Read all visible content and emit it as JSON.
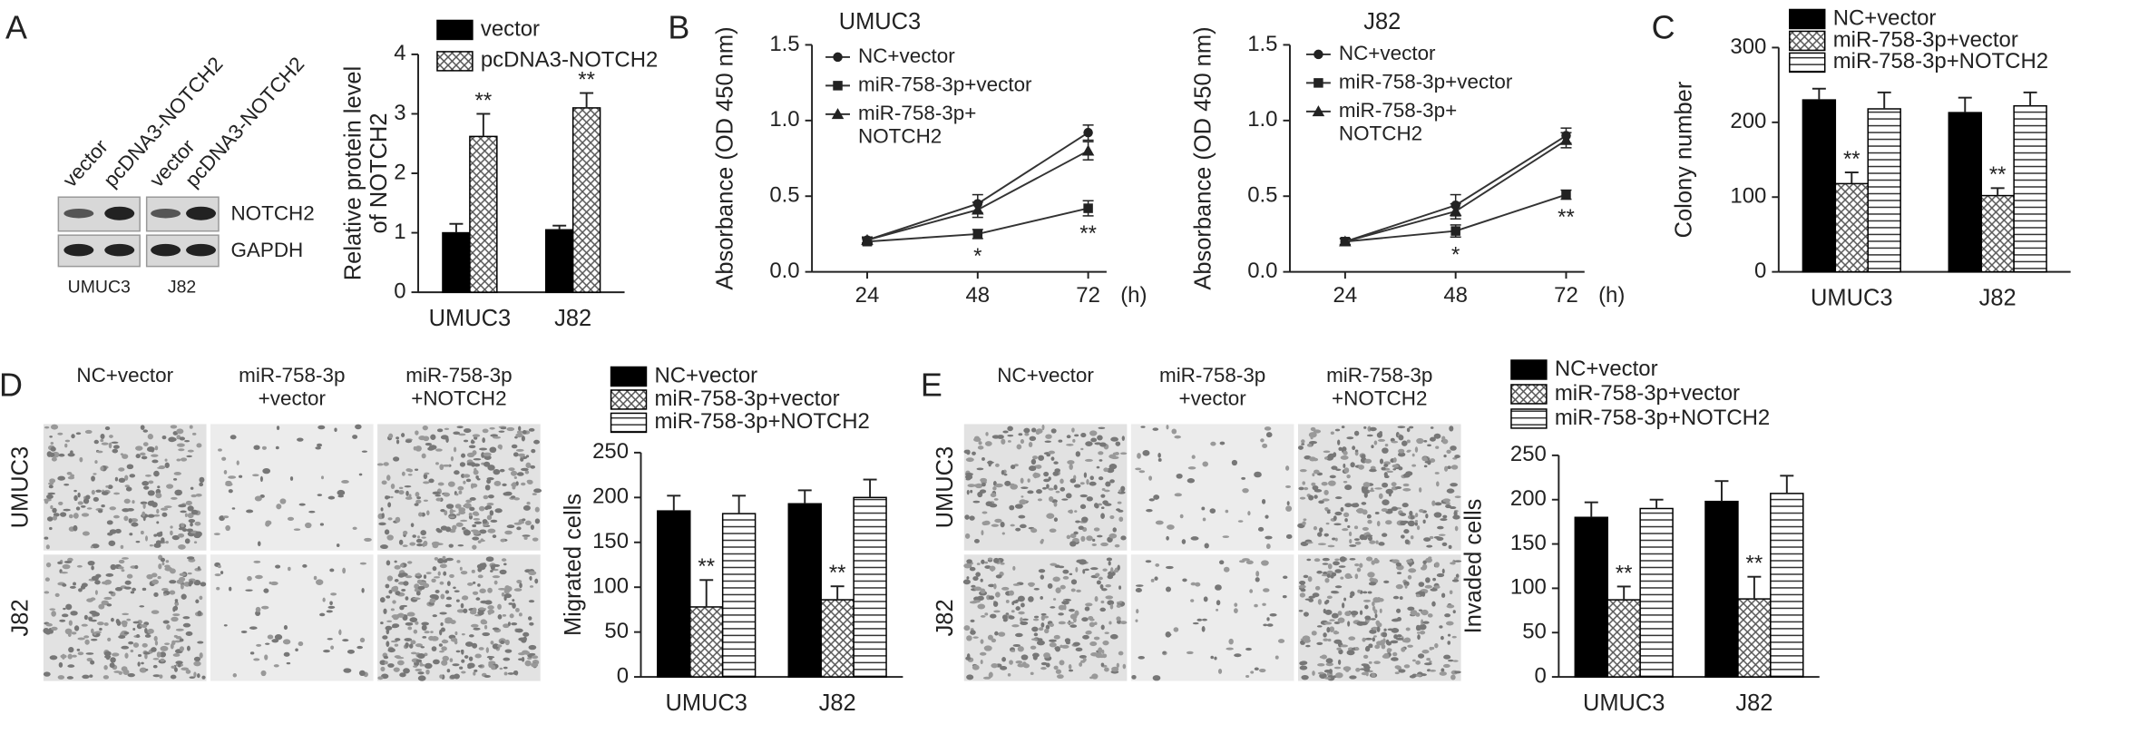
{
  "panel_labels": [
    "A",
    "B",
    "C",
    "D",
    "E"
  ],
  "blot": {
    "lanes": [
      "vector",
      "pcDNA3-NOTCH2",
      "vector",
      "pcDNA3-NOTCH2"
    ],
    "bands": [
      "NOTCH2",
      "GAPDH"
    ],
    "cell_lines": [
      "UMUC3",
      "J82"
    ]
  },
  "micrographs": [
    {
      "columns": [
        "NC+vector",
        "miR-758-3p\n+vector",
        "miR-758-3p\n+NOTCH2"
      ],
      "rows": [
        "UMUC3",
        "J82"
      ]
    },
    {
      "columns": [
        "NC+vector",
        "miR-758-3p\n+vector",
        "miR-758-3p\n+NOTCH2"
      ],
      "rows": [
        "UMUC3",
        "J82"
      ]
    }
  ],
  "chart_data": [
    {
      "type": "bar",
      "ylabel": "Relative protein level\nof NOTCH2",
      "categories": [
        "UMUC3",
        "J82"
      ],
      "ylim": [
        0,
        4
      ],
      "yticks": [
        0,
        1,
        2,
        3,
        4
      ],
      "series": [
        {
          "name": "vector",
          "color": "#000000",
          "pattern": "solid",
          "values": [
            1.0,
            1.05
          ],
          "errors": [
            0.15,
            0.07
          ],
          "significance": [
            null,
            null
          ]
        },
        {
          "name": "pcDNA3-NOTCH2",
          "color": "#000000",
          "pattern": "checker",
          "values": [
            2.62,
            3.1
          ],
          "errors": [
            0.38,
            0.25
          ],
          "significance": [
            "**",
            "**"
          ]
        }
      ]
    },
    {
      "type": "line",
      "title": "UMUC3",
      "ylabel": "Absorbance (OD 450 nm)",
      "xlabel": "(h)",
      "x": [
        24,
        48,
        72
      ],
      "xlim": [
        12,
        76
      ],
      "xticks": [
        24,
        48,
        72
      ],
      "ylim": [
        0,
        1.5
      ],
      "yticks": [
        {
          "value": 0,
          "label": "0.0"
        },
        0.5,
        {
          "value": 1,
          "label": "1.0"
        },
        1.5
      ],
      "series": [
        {
          "name": "NC+vector",
          "color": "#333333",
          "marker": "circle",
          "values": [
            0.21,
            0.45,
            0.92
          ],
          "errors": [
            0.02,
            0.06,
            0.05
          ],
          "significance": [
            null,
            null,
            null
          ]
        },
        {
          "name": "miR-758-3p+vector",
          "color": "#333333",
          "marker": "square",
          "values": [
            0.2,
            0.25,
            0.42
          ],
          "errors": [
            0.02,
            0.03,
            0.05
          ],
          "significance": [
            null,
            "*",
            "**"
          ]
        },
        {
          "name": "miR-758-3p+\nNOTCH2",
          "color": "#333333",
          "marker": "triangle",
          "values": [
            0.21,
            0.41,
            0.8
          ],
          "errors": [
            0.02,
            0.05,
            0.06
          ],
          "significance": [
            null,
            null,
            null
          ]
        }
      ]
    },
    {
      "type": "line",
      "title": "J82",
      "ylabel": "Absorbance (OD 450 nm)",
      "xlabel": "(h)",
      "x": [
        24,
        48,
        72
      ],
      "xlim": [
        12,
        76
      ],
      "xticks": [
        24,
        48,
        72
      ],
      "ylim": [
        0,
        1.5
      ],
      "yticks": [
        {
          "value": 0,
          "label": "0.0"
        },
        0.5,
        {
          "value": 1,
          "label": "1.0"
        },
        1.5
      ],
      "series": [
        {
          "name": "NC+vector",
          "color": "#333333",
          "marker": "circle",
          "values": [
            0.2,
            0.44,
            0.9
          ],
          "errors": [
            0.02,
            0.07,
            0.05
          ],
          "significance": [
            null,
            null,
            null
          ]
        },
        {
          "name": "miR-758-3p+vector",
          "color": "#333333",
          "marker": "square",
          "values": [
            0.2,
            0.27,
            0.51
          ],
          "errors": [
            0.02,
            0.04,
            0.03
          ],
          "significance": [
            null,
            "*",
            "**"
          ]
        },
        {
          "name": "miR-758-3p+\nNOTCH2",
          "color": "#333333",
          "marker": "triangle",
          "values": [
            0.2,
            0.4,
            0.87
          ],
          "errors": [
            0.02,
            0.05,
            0.05
          ],
          "significance": [
            null,
            null,
            null
          ]
        }
      ]
    },
    {
      "type": "bar",
      "ylabel": "Colony number",
      "categories": [
        "UMUC3",
        "J82"
      ],
      "ylim": [
        0,
        300
      ],
      "yticks": [
        0,
        100,
        200,
        300
      ],
      "series": [
        {
          "name": "NC+vector",
          "color": "#000000",
          "pattern": "solid",
          "values": [
            230,
            213
          ],
          "errors": [
            15,
            20
          ],
          "significance": [
            null,
            null
          ]
        },
        {
          "name": "miR-758-3p+vector",
          "color": "#000000",
          "pattern": "checker",
          "values": [
            118,
            102
          ],
          "errors": [
            15,
            10
          ],
          "significance": [
            "**",
            "**"
          ]
        },
        {
          "name": "miR-758-3p+NOTCH2",
          "color": "#000000",
          "pattern": "stripes",
          "values": [
            218,
            222
          ],
          "errors": [
            22,
            18
          ],
          "significance": [
            null,
            null
          ]
        }
      ]
    },
    {
      "type": "bar",
      "ylabel": "Migrated cells",
      "categories": [
        "UMUC3",
        "J82"
      ],
      "ylim": [
        0,
        250
      ],
      "yticks": [
        0,
        50,
        100,
        150,
        200,
        250
      ],
      "series": [
        {
          "name": "NC+vector",
          "color": "#000000",
          "pattern": "solid",
          "values": [
            185,
            193
          ],
          "errors": [
            17,
            15
          ],
          "significance": [
            null,
            null
          ]
        },
        {
          "name": "miR-758-3p+vector",
          "color": "#000000",
          "pattern": "checker",
          "values": [
            78,
            86
          ],
          "errors": [
            30,
            15
          ],
          "significance": [
            "**",
            "**"
          ]
        },
        {
          "name": "miR-758-3p+NOTCH2",
          "color": "#000000",
          "pattern": "stripes",
          "values": [
            182,
            200
          ],
          "errors": [
            20,
            20
          ],
          "significance": [
            null,
            null
          ]
        }
      ]
    },
    {
      "type": "bar",
      "ylabel": "Invaded cells",
      "categories": [
        "UMUC3",
        "J82"
      ],
      "ylim": [
        0,
        250
      ],
      "yticks": [
        0,
        50,
        100,
        150,
        200,
        250
      ],
      "series": [
        {
          "name": "NC+vector",
          "color": "#000000",
          "pattern": "solid",
          "values": [
            180,
            198
          ],
          "errors": [
            17,
            23
          ],
          "significance": [
            null,
            null
          ]
        },
        {
          "name": "miR-758-3p+vector",
          "color": "#000000",
          "pattern": "checker",
          "values": [
            87,
            88
          ],
          "errors": [
            15,
            25
          ],
          "significance": [
            "**",
            "**"
          ]
        },
        {
          "name": "miR-758-3p+NOTCH2",
          "color": "#000000",
          "pattern": "stripes",
          "values": [
            190,
            207
          ],
          "errors": [
            10,
            20
          ],
          "significance": [
            null,
            null
          ]
        }
      ]
    }
  ]
}
